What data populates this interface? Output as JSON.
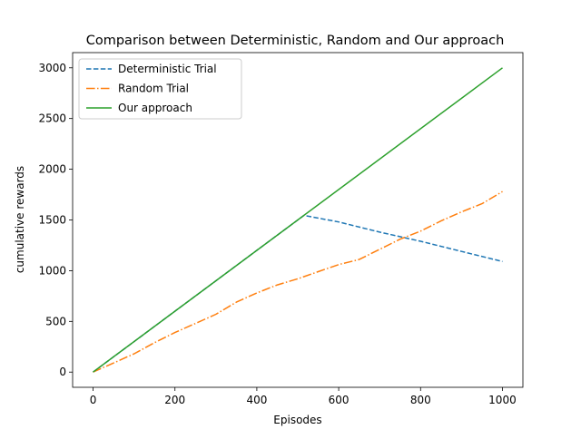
{
  "chart_data": {
    "type": "line",
    "title": "Comparison between Deterministic, Random and Our approach",
    "xlabel": "Episodes",
    "ylabel": "cumulative rewards",
    "xlim": [
      -50,
      1050
    ],
    "ylim": [
      -150,
      3150
    ],
    "xticks": [
      0,
      200,
      400,
      600,
      800,
      1000
    ],
    "yticks": [
      0,
      500,
      1000,
      1500,
      2000,
      2500,
      3000
    ],
    "grid": false,
    "legend_position": "top-left",
    "series": [
      {
        "name": "Deterministic Trial",
        "color": "#1f77b4",
        "linestyle": "dashed",
        "x": [
          0,
          100,
          200,
          300,
          400,
          515,
          600,
          700,
          800,
          900,
          1000
        ],
        "y": [
          0,
          300,
          600,
          900,
          1200,
          1545,
          1480,
          1380,
          1290,
          1190,
          1090
        ]
      },
      {
        "name": "Random Trial",
        "color": "#ff7f0e",
        "linestyle": "dashdot",
        "x": [
          0,
          50,
          100,
          150,
          200,
          250,
          300,
          350,
          400,
          450,
          500,
          550,
          600,
          650,
          700,
          750,
          800,
          850,
          900,
          950,
          1000
        ],
        "y": [
          0,
          90,
          180,
          290,
          390,
          480,
          570,
          690,
          780,
          860,
          920,
          990,
          1060,
          1110,
          1210,
          1310,
          1390,
          1490,
          1580,
          1660,
          1780
        ]
      },
      {
        "name": "Our approach",
        "color": "#2ca02c",
        "linestyle": "solid",
        "x": [
          0,
          1000
        ],
        "y": [
          0,
          3000
        ]
      }
    ]
  }
}
